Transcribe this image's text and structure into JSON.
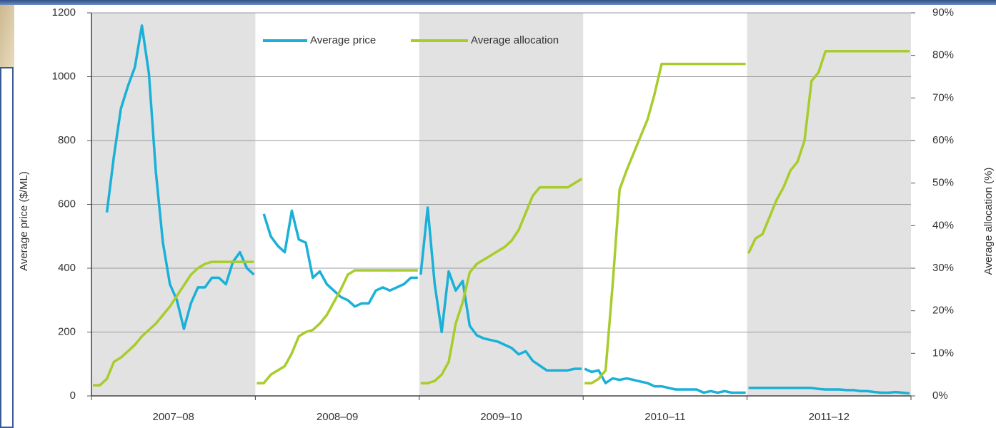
{
  "chart_data": {
    "type": "line",
    "y_label": "Average price ($/ML)",
    "y2_label": "Average allocation (%)",
    "categories": [
      "2007–08",
      "2008–09",
      "2009–10",
      "2010–11",
      "2011–12"
    ],
    "shaded": [
      true,
      false,
      true,
      false,
      true
    ],
    "band_color": "#e2e2e2",
    "ylim": [
      0,
      1200
    ],
    "yticks": [
      0,
      200,
      400,
      600,
      800,
      1000,
      1200
    ],
    "y2lim": [
      0,
      90
    ],
    "y2ticks": [
      {
        "value": 0,
        "label": "0%"
      },
      {
        "value": 10,
        "label": "10%"
      },
      {
        "value": 20,
        "label": "20%"
      },
      {
        "value": 30,
        "label": "30%"
      },
      {
        "value": 40,
        "label": "40%"
      },
      {
        "value": 50,
        "label": "50%"
      },
      {
        "value": 60,
        "label": "60%"
      },
      {
        "value": 70,
        "label": "70%"
      },
      {
        "value": 80,
        "label": "80%"
      },
      {
        "value": 90,
        "label": "90%"
      }
    ],
    "grid": true,
    "legend": "top",
    "series": [
      {
        "name": "Average price",
        "color": "#1ab0d8",
        "values": [
          [
            null,
            null,
            575,
            750,
            900,
            970,
            1030,
            1160,
            1010,
            700,
            480,
            350,
            300,
            210,
            290,
            340,
            340,
            370,
            370,
            350,
            420,
            450,
            400,
            380
          ],
          [
            null,
            570,
            500,
            470,
            450,
            580,
            490,
            480,
            370,
            390,
            350,
            330,
            310,
            300,
            280,
            290,
            290,
            330,
            340,
            330,
            340,
            350,
            370,
            370
          ],
          [
            380,
            590,
            350,
            200,
            390,
            330,
            360,
            220,
            190,
            180,
            175,
            170,
            160,
            150,
            130,
            140,
            110,
            95,
            80,
            80,
            80,
            80,
            85,
            85
          ],
          [
            85,
            75,
            80,
            40,
            55,
            50,
            55,
            50,
            45,
            40,
            30,
            30,
            25,
            20,
            20,
            20,
            20,
            10,
            15,
            10,
            15,
            10,
            10,
            10
          ],
          [
            25,
            25,
            25,
            25,
            25,
            25,
            25,
            25,
            25,
            25,
            22,
            20,
            20,
            20,
            18,
            18,
            15,
            15,
            12,
            10,
            10,
            12,
            10,
            8
          ]
        ]
      },
      {
        "name": "Average allocation",
        "color": "#a8cc2c",
        "axis": "y2",
        "values": [
          [
            2.5,
            2.5,
            4,
            8,
            9,
            10.5,
            12,
            14,
            15.5,
            17,
            19,
            21,
            23.5,
            26,
            28.5,
            30,
            31,
            31.5,
            31.5,
            31.5,
            31.5,
            31.5,
            31.5,
            31.5
          ],
          [
            3,
            3,
            5,
            6,
            7,
            10,
            14,
            15,
            15.5,
            17,
            19,
            22,
            25,
            28.5,
            29.5,
            29.5,
            29.5,
            29.5,
            29.5,
            29.5,
            29.5,
            29.5,
            29.5,
            29.5
          ],
          [
            3,
            3,
            3.5,
            5,
            8,
            17,
            22,
            29,
            31,
            32,
            33,
            34,
            35,
            36.5,
            39,
            43,
            47,
            49,
            49,
            49,
            49,
            49,
            50,
            51
          ],
          [
            3,
            3,
            4,
            6,
            26,
            48.5,
            53,
            57,
            61,
            65,
            71,
            78,
            78,
            78,
            78,
            78,
            78,
            78,
            78,
            78,
            78,
            78,
            78,
            78
          ],
          [
            33.5,
            37,
            38,
            42,
            46,
            49,
            53,
            55,
            60,
            74,
            76,
            81,
            81,
            81,
            81,
            81,
            81,
            81,
            81,
            81,
            81,
            81,
            81,
            81
          ]
        ]
      }
    ]
  }
}
